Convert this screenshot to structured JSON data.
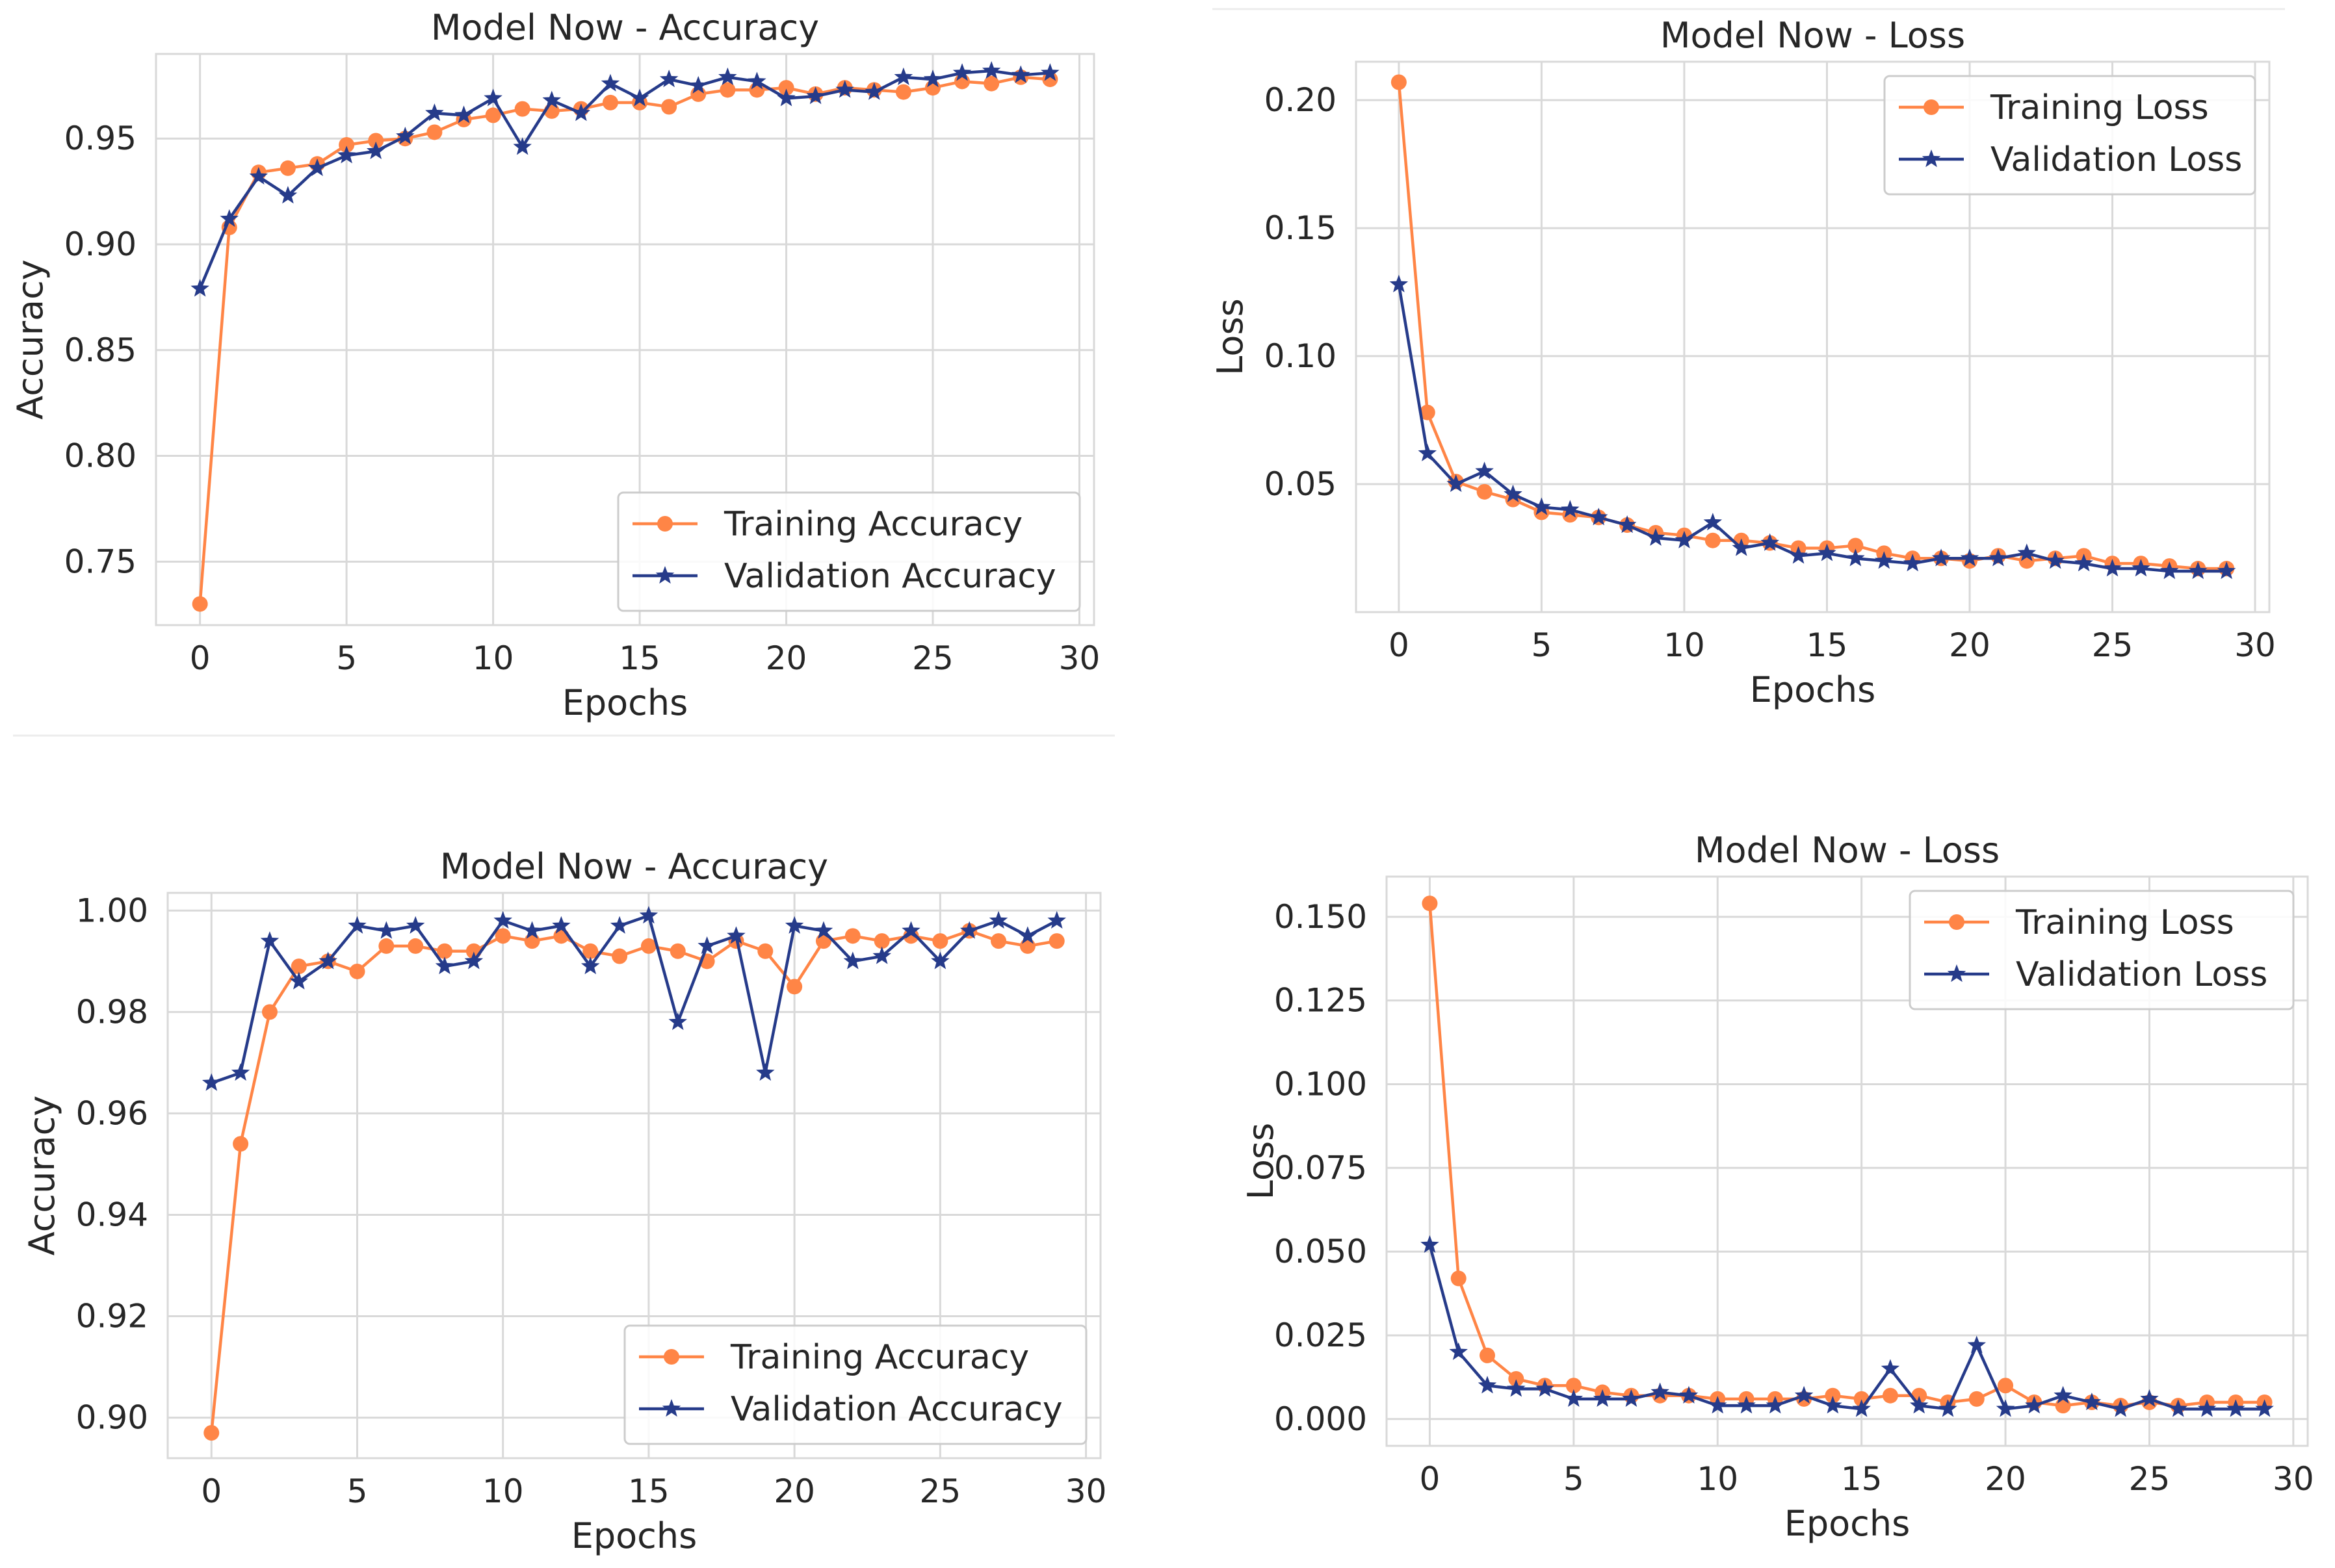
{
  "colors": {
    "training": "#ff8546",
    "validation": "#263b8a",
    "grid": "#d9d9d9",
    "text": "#262626",
    "frame": "#e3e3e3"
  },
  "chart_data": [
    {
      "type": "line",
      "title": "Model Now - Accuracy",
      "xlabel": "Epochs",
      "ylabel": "Accuracy",
      "xlim": [
        -1.5,
        30.5
      ],
      "ylim": [
        0.72,
        0.99
      ],
      "xticks": [
        0,
        5,
        10,
        15,
        20,
        25,
        30
      ],
      "yticks": [
        0.75,
        0.8,
        0.85,
        0.9,
        0.95
      ],
      "ytick_labels": [
        "0.75",
        "0.80",
        "0.85",
        "0.90",
        "0.95"
      ],
      "grid": true,
      "legend": "lower right",
      "x": [
        0,
        1,
        2,
        3,
        4,
        5,
        6,
        7,
        8,
        9,
        10,
        11,
        12,
        13,
        14,
        15,
        16,
        17,
        18,
        19,
        20,
        21,
        22,
        23,
        24,
        25,
        26,
        27,
        28,
        29
      ],
      "series": [
        {
          "name": "Training Accuracy",
          "marker": "circle",
          "values": [
            0.73,
            0.908,
            0.934,
            0.936,
            0.938,
            0.947,
            0.949,
            0.95,
            0.953,
            0.959,
            0.961,
            0.964,
            0.963,
            0.964,
            0.967,
            0.967,
            0.965,
            0.971,
            0.973,
            0.973,
            0.974,
            0.971,
            0.974,
            0.973,
            0.972,
            0.974,
            0.977,
            0.976,
            0.979,
            0.978
          ]
        },
        {
          "name": "Validation Accuracy",
          "marker": "star",
          "values": [
            0.879,
            0.912,
            0.932,
            0.923,
            0.936,
            0.942,
            0.944,
            0.951,
            0.962,
            0.961,
            0.969,
            0.946,
            0.968,
            0.962,
            0.976,
            0.969,
            0.978,
            0.975,
            0.979,
            0.977,
            0.969,
            0.97,
            0.973,
            0.972,
            0.979,
            0.978,
            0.981,
            0.982,
            0.98,
            0.981
          ]
        }
      ]
    },
    {
      "type": "line",
      "title": "Model Now - Loss",
      "xlabel": "Epochs",
      "ylabel": "Loss",
      "xlim": [
        -1.5,
        30.5
      ],
      "ylim": [
        0.0,
        0.215
      ],
      "xticks": [
        0,
        5,
        10,
        15,
        20,
        25,
        30
      ],
      "yticks": [
        0.05,
        0.1,
        0.15,
        0.2
      ],
      "ytick_labels": [
        "0.05",
        "0.10",
        "0.15",
        "0.20"
      ],
      "grid": true,
      "legend": "upper right",
      "x": [
        0,
        1,
        2,
        3,
        4,
        5,
        6,
        7,
        8,
        9,
        10,
        11,
        12,
        13,
        14,
        15,
        16,
        17,
        18,
        19,
        20,
        21,
        22,
        23,
        24,
        25,
        26,
        27,
        28,
        29
      ],
      "series": [
        {
          "name": "Training Loss",
          "marker": "circle",
          "values": [
            0.207,
            0.078,
            0.051,
            0.047,
            0.044,
            0.039,
            0.038,
            0.037,
            0.034,
            0.031,
            0.03,
            0.028,
            0.028,
            0.027,
            0.025,
            0.025,
            0.026,
            0.023,
            0.021,
            0.021,
            0.02,
            0.022,
            0.02,
            0.021,
            0.022,
            0.019,
            0.019,
            0.018,
            0.017,
            0.017
          ]
        },
        {
          "name": "Validation Loss",
          "marker": "star",
          "values": [
            0.128,
            0.062,
            0.05,
            0.055,
            0.046,
            0.041,
            0.04,
            0.037,
            0.034,
            0.029,
            0.028,
            0.035,
            0.025,
            0.027,
            0.022,
            0.023,
            0.021,
            0.02,
            0.019,
            0.021,
            0.021,
            0.021,
            0.023,
            0.02,
            0.019,
            0.017,
            0.017,
            0.016,
            0.016,
            0.016
          ]
        }
      ]
    },
    {
      "type": "line",
      "title": "Model Now - Accuracy",
      "xlabel": "Epochs",
      "ylabel": "Accuracy",
      "xlim": [
        -1.5,
        30.5
      ],
      "ylim": [
        0.892,
        1.0035
      ],
      "xticks": [
        0,
        5,
        10,
        15,
        20,
        25,
        30
      ],
      "yticks": [
        0.9,
        0.92,
        0.94,
        0.96,
        0.98,
        1.0
      ],
      "ytick_labels": [
        "0.90",
        "0.92",
        "0.94",
        "0.96",
        "0.98",
        "1.00"
      ],
      "grid": true,
      "legend": "lower right",
      "x": [
        0,
        1,
        2,
        3,
        4,
        5,
        6,
        7,
        8,
        9,
        10,
        11,
        12,
        13,
        14,
        15,
        16,
        17,
        18,
        19,
        20,
        21,
        22,
        23,
        24,
        25,
        26,
        27,
        28,
        29
      ],
      "series": [
        {
          "name": "Training Accuracy",
          "marker": "circle",
          "values": [
            0.897,
            0.954,
            0.98,
            0.989,
            0.99,
            0.988,
            0.993,
            0.993,
            0.992,
            0.992,
            0.995,
            0.994,
            0.995,
            0.992,
            0.991,
            0.993,
            0.992,
            0.99,
            0.994,
            0.992,
            0.985,
            0.994,
            0.995,
            0.994,
            0.995,
            0.994,
            0.996,
            0.994,
            0.993,
            0.994
          ]
        },
        {
          "name": "Validation Accuracy",
          "marker": "star",
          "values": [
            0.966,
            0.968,
            0.994,
            0.986,
            0.99,
            0.997,
            0.996,
            0.997,
            0.989,
            0.99,
            0.998,
            0.996,
            0.997,
            0.989,
            0.997,
            0.999,
            0.978,
            0.993,
            0.995,
            0.968,
            0.997,
            0.996,
            0.99,
            0.991,
            0.996,
            0.99,
            0.996,
            0.998,
            0.995,
            0.998
          ]
        }
      ]
    },
    {
      "type": "line",
      "title": "Model Now - Loss",
      "xlabel": "Epochs",
      "ylabel": "Loss",
      "xlim": [
        -1.5,
        30.5
      ],
      "ylim": [
        -0.008,
        0.162
      ],
      "xticks": [
        0,
        5,
        10,
        15,
        20,
        25,
        30
      ],
      "yticks": [
        0.0,
        0.025,
        0.05,
        0.075,
        0.1,
        0.125,
        0.15
      ],
      "ytick_labels": [
        "0.000",
        "0.025",
        "0.050",
        "0.075",
        "0.100",
        "0.125",
        "0.150"
      ],
      "grid": true,
      "legend": "upper right",
      "x": [
        0,
        1,
        2,
        3,
        4,
        5,
        6,
        7,
        8,
        9,
        10,
        11,
        12,
        13,
        14,
        15,
        16,
        17,
        18,
        19,
        20,
        21,
        22,
        23,
        24,
        25,
        26,
        27,
        28,
        29
      ],
      "series": [
        {
          "name": "Training Loss",
          "marker": "circle",
          "values": [
            0.154,
            0.042,
            0.019,
            0.012,
            0.01,
            0.01,
            0.008,
            0.007,
            0.007,
            0.007,
            0.006,
            0.006,
            0.006,
            0.006,
            0.007,
            0.006,
            0.007,
            0.007,
            0.005,
            0.006,
            0.01,
            0.005,
            0.004,
            0.005,
            0.004,
            0.005,
            0.004,
            0.005,
            0.005,
            0.005
          ]
        },
        {
          "name": "Validation Loss",
          "marker": "star",
          "values": [
            0.052,
            0.02,
            0.01,
            0.009,
            0.009,
            0.006,
            0.006,
            0.006,
            0.008,
            0.007,
            0.004,
            0.004,
            0.004,
            0.007,
            0.004,
            0.003,
            0.015,
            0.004,
            0.003,
            0.022,
            0.003,
            0.004,
            0.007,
            0.005,
            0.003,
            0.006,
            0.003,
            0.003,
            0.003,
            0.003
          ]
        }
      ]
    }
  ]
}
